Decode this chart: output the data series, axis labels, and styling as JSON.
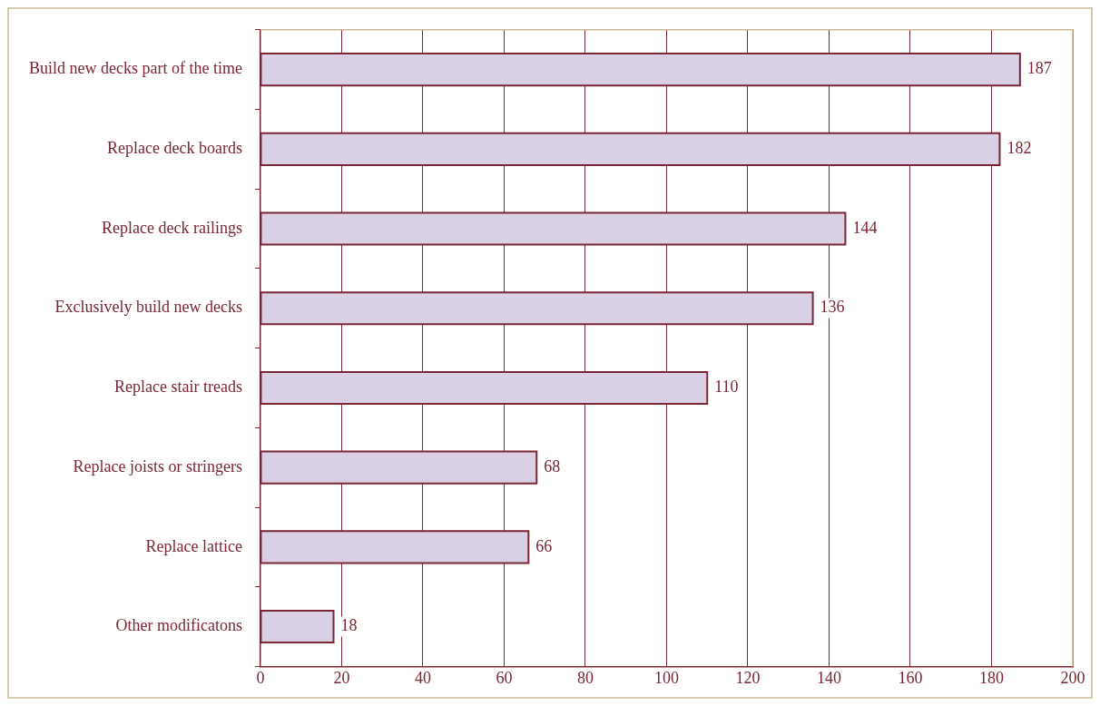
{
  "chart_data": {
    "type": "bar",
    "orientation": "horizontal",
    "categories": [
      "Build new decks part of the time",
      "Replace deck boards",
      "Replace deck railings",
      "Exclusively build new decks",
      "Replace stair treads",
      "Replace joists or stringers",
      "Replace lattice",
      "Other modificatons"
    ],
    "values": [
      187,
      182,
      144,
      136,
      110,
      68,
      66,
      18
    ],
    "color": "#d9d0e6",
    "xlim": [
      0,
      200
    ],
    "xticks": [
      0,
      20,
      40,
      60,
      80,
      100,
      120,
      140,
      160,
      180,
      200
    ],
    "grid": "x",
    "legend": false,
    "data_labels": true
  }
}
